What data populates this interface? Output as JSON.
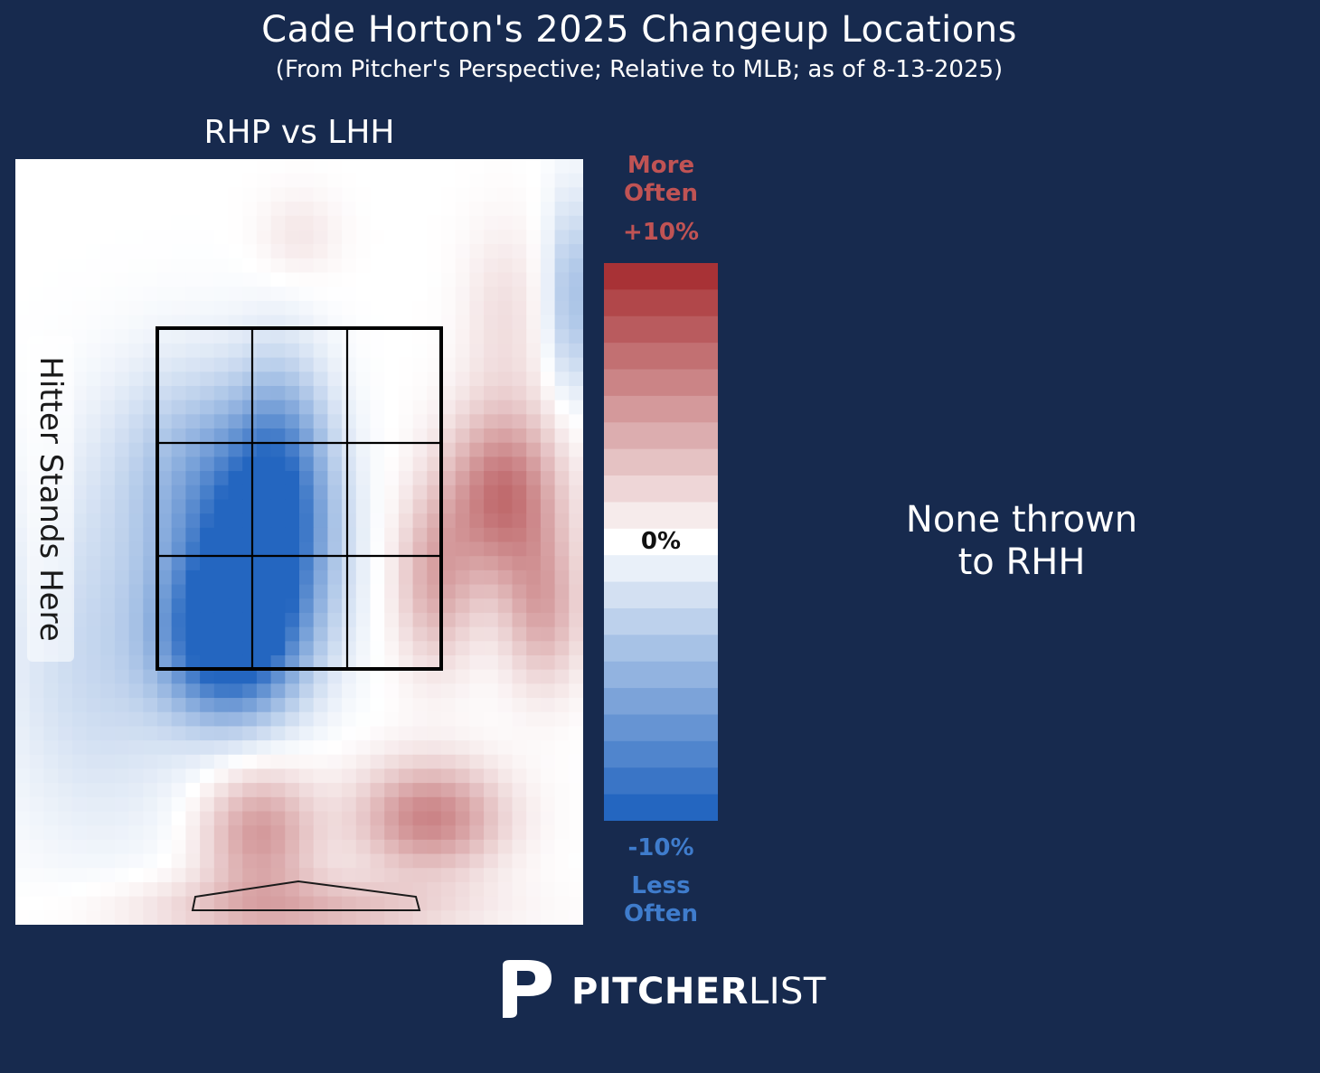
{
  "title": "Cade Horton's 2025 Changeup Locations",
  "subtitle": "(From Pitcher's Perspective; Relative to MLB; as of 8-13-2025)",
  "panel_left": {
    "title": "RHP vs LHH",
    "stand_label": "Hitter Stands Here"
  },
  "panel_right": {
    "line1": "None thrown",
    "line2": "to RHH"
  },
  "colorbar": {
    "top_label_1": "More",
    "top_label_2": "Often",
    "max_label": "+10%",
    "mid_label": "0%",
    "min_label": "-10%",
    "bottom_label_1": "Less",
    "bottom_label_2": "Often",
    "pos_color": "#a83236",
    "neg_color": "#2466c0"
  },
  "logo": {
    "bold": "PITCHER",
    "light": "LIST"
  },
  "chart_data": {
    "type": "heatmap",
    "title": "RHP vs LHH",
    "value_range": [
      -10,
      10
    ],
    "unit": "%",
    "x_range": [
      0,
      1
    ],
    "y_range": [
      0,
      1
    ],
    "strike_zone_grid": "3x3",
    "hotspots": [
      {
        "x": 0.42,
        "y": 0.52,
        "sx": 0.09,
        "sy": 0.11,
        "v": -10
      },
      {
        "x": 0.37,
        "y": 0.63,
        "sx": 0.08,
        "sy": 0.07,
        "v": -9
      },
      {
        "x": 0.47,
        "y": 0.4,
        "sx": 0.06,
        "sy": 0.1,
        "v": -5
      },
      {
        "x": 0.3,
        "y": 0.4,
        "sx": 0.1,
        "sy": 0.1,
        "v": -3
      },
      {
        "x": 0.15,
        "y": 0.65,
        "sx": 0.12,
        "sy": 0.16,
        "v": -2.5
      },
      {
        "x": 0.98,
        "y": 0.18,
        "sx": 0.03,
        "sy": 0.09,
        "v": -4
      },
      {
        "x": 0.86,
        "y": 0.44,
        "sx": 0.07,
        "sy": 0.08,
        "v": 7
      },
      {
        "x": 0.74,
        "y": 0.55,
        "sx": 0.05,
        "sy": 0.08,
        "v": 4
      },
      {
        "x": 0.93,
        "y": 0.59,
        "sx": 0.05,
        "sy": 0.07,
        "v": 4
      },
      {
        "x": 0.73,
        "y": 0.86,
        "sx": 0.09,
        "sy": 0.05,
        "v": 6
      },
      {
        "x": 0.43,
        "y": 0.88,
        "sx": 0.07,
        "sy": 0.06,
        "v": 5
      },
      {
        "x": 0.5,
        "y": 0.98,
        "sx": 0.2,
        "sy": 0.03,
        "v": 3.5
      },
      {
        "x": 0.86,
        "y": 0.2,
        "sx": 0.05,
        "sy": 0.08,
        "v": 1.5
      },
      {
        "x": 0.5,
        "y": 0.1,
        "sx": 0.05,
        "sy": 0.04,
        "v": 1.2
      }
    ]
  }
}
